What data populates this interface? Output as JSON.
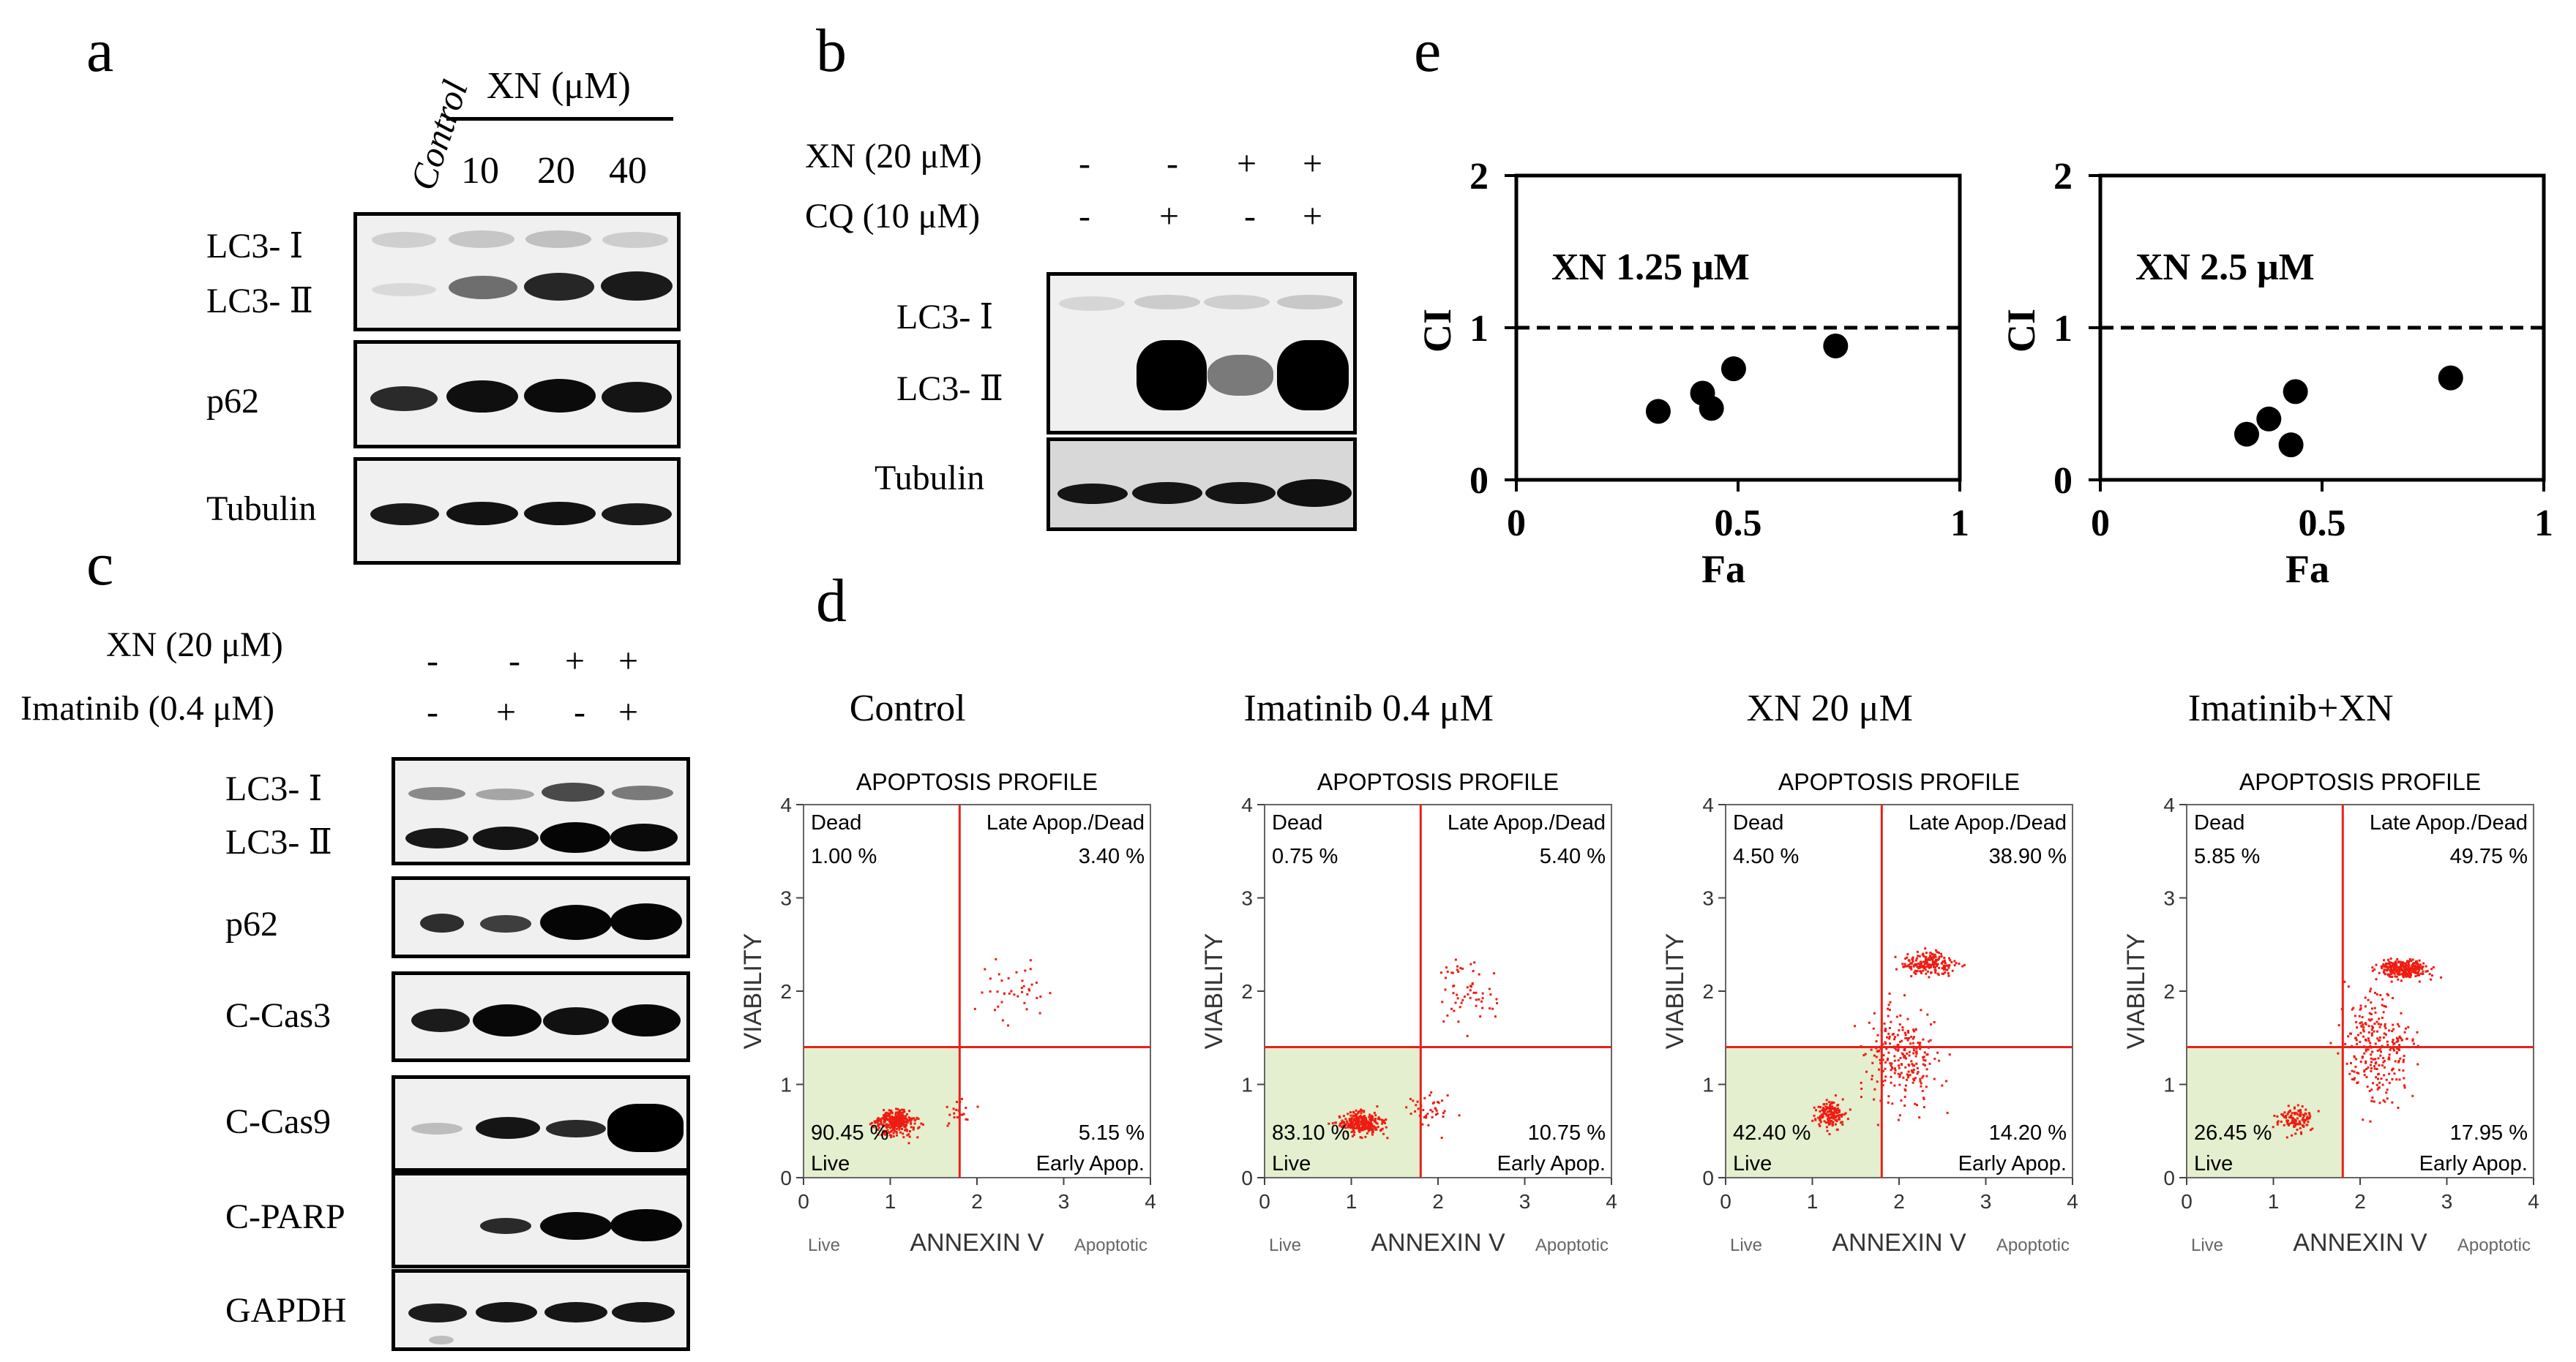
{
  "panels": {
    "a": {
      "letter": "a",
      "control_label": "Control",
      "treatment_label": "XN (μM)",
      "doses": [
        "10",
        "20",
        "40"
      ],
      "rows": [
        "LC3- Ⅰ",
        "LC3- Ⅱ",
        "p62",
        "Tubulin"
      ]
    },
    "b": {
      "letter": "b",
      "treatments": [
        {
          "label": "XN (20 μM)",
          "signs": [
            "-",
            "-",
            "+",
            "+"
          ]
        },
        {
          "label": "CQ (10 μM)",
          "signs": [
            "-",
            "+",
            "-",
            "+"
          ]
        }
      ],
      "rows": [
        "LC3- Ⅰ",
        "LC3- Ⅱ",
        "Tubulin"
      ]
    },
    "c": {
      "letter": "c",
      "treatments": [
        {
          "label": "XN (20 μM)",
          "signs": [
            "-",
            "-",
            "+",
            "+"
          ]
        },
        {
          "label": "Imatinib (0.4 μM)",
          "signs": [
            "-",
            "+",
            "-",
            "+"
          ]
        }
      ],
      "rows": [
        "LC3- Ⅰ",
        "LC3- Ⅱ",
        "p62",
        "C-Cas3",
        "C-Cas9",
        "C-PARP",
        "GAPDH"
      ]
    },
    "d": {
      "letter": "d",
      "plot_title": "APOPTOSIS PROFILE",
      "quadrant_labels": {
        "tl": "Dead",
        "tr": "Late Apop./Dead",
        "bl": "Live",
        "br": "Early Apop."
      },
      "x_axis_label": "ANNEXIN V",
      "x_left_note": "Live",
      "x_right_note": "Apoptotic",
      "y_axis_label": "VIABILITY",
      "ticks": [
        "0",
        "1",
        "2",
        "3",
        "4"
      ]
    },
    "e": {
      "letter": "e"
    }
  },
  "chart_data": [
    {
      "type": "scatter",
      "title": "XN 1.25 μM",
      "xlabel": "Fa",
      "ylabel": "CI",
      "xlim": [
        0,
        1
      ],
      "ylim": [
        0,
        2
      ],
      "xticks": [
        "0",
        "0.5",
        "1"
      ],
      "yticks": [
        "0",
        "1",
        "2"
      ],
      "reference_line_y": 1,
      "points": [
        {
          "x": 0.32,
          "y": 0.45
        },
        {
          "x": 0.42,
          "y": 0.57
        },
        {
          "x": 0.44,
          "y": 0.47
        },
        {
          "x": 0.49,
          "y": 0.73
        },
        {
          "x": 0.72,
          "y": 0.88
        }
      ]
    },
    {
      "type": "scatter",
      "title": "XN 2.5 μM",
      "xlabel": "Fa",
      "ylabel": "CI",
      "xlim": [
        0,
        1
      ],
      "ylim": [
        0,
        2
      ],
      "xticks": [
        "0",
        "0.5",
        "1"
      ],
      "yticks": [
        "0",
        "1",
        "2"
      ],
      "reference_line_y": 1,
      "points": [
        {
          "x": 0.33,
          "y": 0.3
        },
        {
          "x": 0.38,
          "y": 0.4
        },
        {
          "x": 0.43,
          "y": 0.23
        },
        {
          "x": 0.44,
          "y": 0.58
        },
        {
          "x": 0.79,
          "y": 0.67
        }
      ]
    },
    {
      "type": "scatter",
      "title": "Control",
      "quadrants": {
        "dead": "1.00 %",
        "late_apop_dead": "3.40 %",
        "live": "90.45 %",
        "early_apop": "5.15 %"
      }
    },
    {
      "type": "scatter",
      "title": "Imatinib 0.4 μM",
      "quadrants": {
        "dead": "0.75 %",
        "late_apop_dead": "5.40 %",
        "live": "83.10 %",
        "early_apop": "10.75 %"
      }
    },
    {
      "type": "scatter",
      "title": "XN 20 μM",
      "quadrants": {
        "dead": "4.50 %",
        "late_apop_dead": "38.90 %",
        "live": "42.40 %",
        "early_apop": "14.20 %"
      }
    },
    {
      "type": "scatter",
      "title": "Imatinib+XN",
      "quadrants": {
        "dead": "5.85 %",
        "late_apop_dead": "49.75 %",
        "live": "26.45 %",
        "early_apop": "17.95 %"
      }
    }
  ]
}
